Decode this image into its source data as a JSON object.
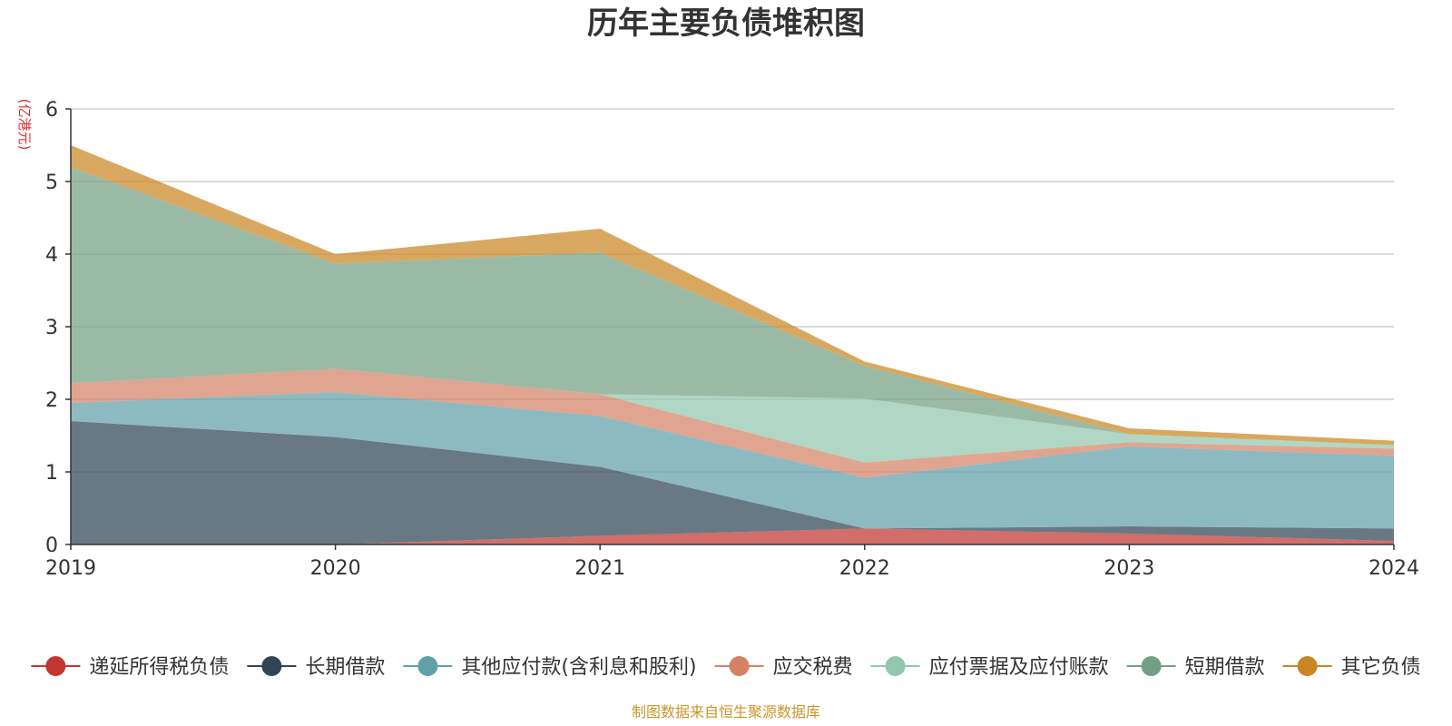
{
  "chart_data": {
    "type": "area",
    "stacked": true,
    "title": "历年主要负债堆积图",
    "ylabel": "(亿港元)",
    "xlabel": "",
    "x": [
      "2019",
      "2020",
      "2021",
      "2022",
      "2023",
      "2024"
    ],
    "ylim": [
      0,
      6
    ],
    "yticks": [
      "0",
      "1",
      "2",
      "3",
      "4",
      "5",
      "6"
    ],
    "grid": true,
    "legend_position": "bottom",
    "source": "制图数据来自恒生聚源数据库",
    "series": [
      {
        "name": "递延所得税负债",
        "color": "#c23531",
        "values": [
          0,
          0,
          0.12,
          0.22,
          0.15,
          0.05
        ]
      },
      {
        "name": "长期借款",
        "color": "#2f4554",
        "values": [
          1.7,
          1.48,
          0.95,
          0,
          0.1,
          0.17
        ]
      },
      {
        "name": "其他应付款(含利息和股利)",
        "color": "#61a0a8",
        "values": [
          0.25,
          0.62,
          0.7,
          0.7,
          1.1,
          1.0
        ]
      },
      {
        "name": "应交税费",
        "color": "#d48265",
        "values": [
          0.27,
          0.32,
          0.3,
          0.21,
          0.06,
          0.1
        ]
      },
      {
        "name": "应付票据及应付账款",
        "color": "#91c7ae",
        "values": [
          0,
          0,
          0,
          0.88,
          0.11,
          0.05
        ]
      },
      {
        "name": "短期借款",
        "color": "#749f83",
        "values": [
          2.98,
          1.45,
          1.95,
          0.45,
          0,
          0
        ]
      },
      {
        "name": "其它负债",
        "color": "#ca8622",
        "values": [
          0.3,
          0.13,
          0.33,
          0.06,
          0.08,
          0.06
        ]
      }
    ]
  }
}
